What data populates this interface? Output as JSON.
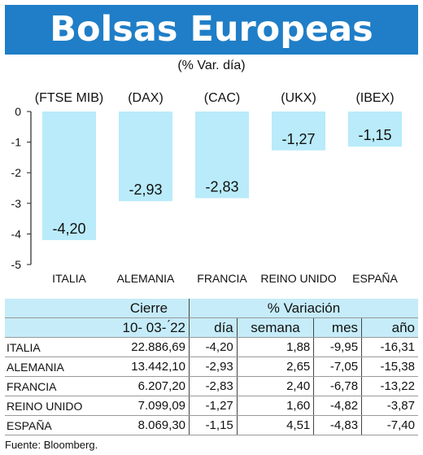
{
  "title": "Bolsas Europeas",
  "subtitle": "(% Var. día)",
  "chart_data": {
    "type": "bar",
    "categories": [
      "ITALIA",
      "ALEMANIA",
      "FRANCIA",
      "REINO UNIDO",
      "ESPAÑA"
    ],
    "index_labels": [
      "(FTSE MIB)",
      "(DAX)",
      "(CAC)",
      "(UKX)",
      "(IBEX)"
    ],
    "values": [
      -4.2,
      -2.93,
      -2.83,
      -1.27,
      -1.15
    ],
    "value_labels": [
      "-4,20",
      "-2,93",
      "-2,83",
      "-1,27",
      "-1,15"
    ],
    "yticks": [
      "0",
      "-1",
      "-2",
      "-3",
      "-4",
      "-5"
    ],
    "ylim": [
      -5,
      0
    ],
    "bar_color": "#b9ebfa",
    "grid": false
  },
  "table": {
    "header1": [
      "Cierre",
      "% Variación"
    ],
    "header2": [
      "10- 03- ́22",
      "día",
      "semana",
      "mes",
      "año"
    ],
    "rows": [
      [
        "ITALIA",
        "22.886,69",
        "-4,20",
        "1,88",
        "-9,95",
        "-16,31"
      ],
      [
        "ALEMANIA",
        "13.442,10",
        "-2,93",
        "2,65",
        "-7,05",
        "-15,38"
      ],
      [
        "FRANCIA",
        "6.207,20",
        "-2,83",
        "2,40",
        "-6,78",
        "-13,22"
      ],
      [
        "REINO UNIDO",
        "7.099,09",
        "-1,27",
        "1,60",
        "-4,82",
        "-3,87"
      ],
      [
        "ESPAÑA",
        "8.069,30",
        "-1,15",
        "4,51",
        "-4,83",
        "-7,40"
      ]
    ]
  },
  "source": "Fuente: Bloomberg.",
  "colors": {
    "banner": "#1f7ec7",
    "header_fill": "#c6ecf9"
  }
}
